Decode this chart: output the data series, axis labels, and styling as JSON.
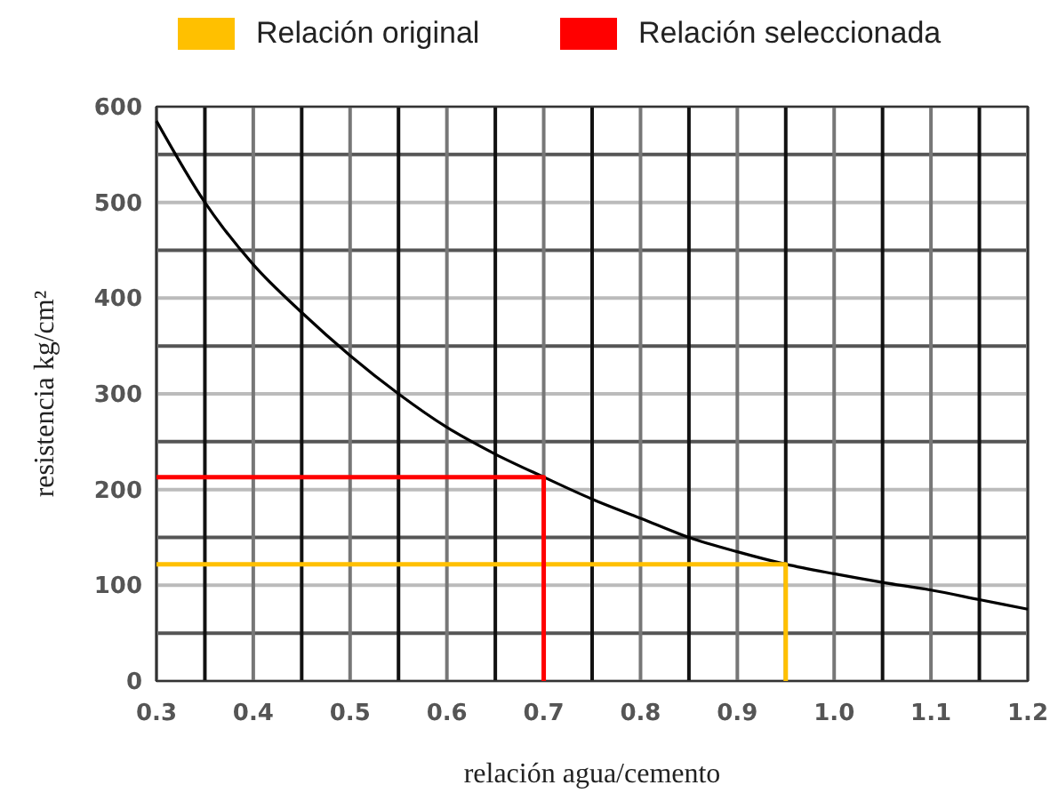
{
  "chart_data": {
    "type": "line",
    "xlabel": "relación agua/cemento",
    "ylabel": "resistencia kg/cm²",
    "xlim": [
      0.3,
      1.2
    ],
    "xticks": [
      0.3,
      {
        "value": 0.35,
        "label": null
      },
      0.4,
      {
        "value": 0.45,
        "label": null
      },
      0.5,
      {
        "value": 0.55,
        "label": null
      },
      0.6,
      {
        "value": 0.65,
        "label": null
      },
      0.7,
      {
        "value": 0.75,
        "label": null
      },
      0.8,
      {
        "value": 0.85,
        "label": null
      },
      0.9,
      {
        "value": 0.95,
        "label": null
      },
      {
        "value": 1,
        "label": "1.0"
      },
      {
        "value": 1.05,
        "label": null
      },
      1.1,
      {
        "value": 1.15,
        "label": null
      },
      1.2
    ],
    "ylim": [
      0,
      600
    ],
    "yticks": [
      0,
      {
        "value": 50,
        "label": null
      },
      100,
      {
        "value": 150,
        "label": null
      },
      200,
      {
        "value": 250,
        "label": null
      },
      300,
      {
        "value": 350,
        "label": null
      },
      400,
      {
        "value": 450,
        "label": null
      },
      500,
      {
        "value": 550,
        "label": null
      },
      600
    ],
    "grid": true,
    "legend": "top",
    "marker": "none",
    "line_style": "solid",
    "series": [
      {
        "color": "#000000",
        "x": [
          0.3,
          0.35,
          0.4,
          0.45,
          0.5,
          0.55,
          0.6,
          0.65,
          0.7,
          0.75,
          0.8,
          0.85,
          0.9,
          0.95,
          1.0,
          1.05,
          1.1,
          1.15,
          1.2
        ],
        "values": [
          585,
          500,
          435,
          385,
          340,
          300,
          265,
          237,
          213,
          190,
          170,
          150,
          135,
          122,
          112,
          103,
          95,
          85,
          75
        ]
      },
      {
        "name": "Relación original",
        "color": "#ffc000",
        "x": [
          0.3,
          0.95,
          0.95
        ],
        "values": [
          122,
          122,
          0
        ]
      },
      {
        "name": "Relación seleccionada",
        "color": "#ff0000",
        "x": [
          0.3,
          0.7,
          0.7
        ],
        "values": [
          213,
          213,
          0
        ]
      }
    ]
  }
}
